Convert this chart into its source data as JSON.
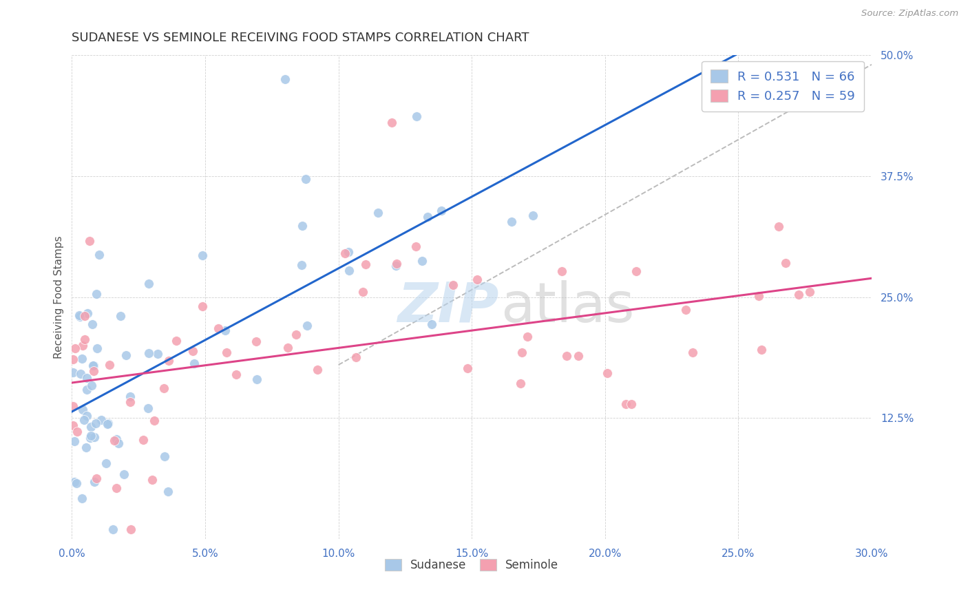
{
  "title": "SUDANESE VS SEMINOLE RECEIVING FOOD STAMPS CORRELATION CHART",
  "source": "Source: ZipAtlas.com",
  "xlim": [
    0.0,
    0.3
  ],
  "ylim": [
    0.0,
    0.5
  ],
  "ylabel": "Receiving Food Stamps",
  "blue_color": "#a8c8e8",
  "pink_color": "#f4a0b0",
  "blue_line_color": "#2266cc",
  "pink_line_color": "#dd4488",
  "dashed_line_color": "#bbbbbb",
  "title_color": "#333333",
  "axis_tick_color": "#4472c4",
  "ylabel_color": "#555555",
  "watermark_zip_color": "#b8d4ee",
  "watermark_atlas_color": "#bbbbbb",
  "grid_color": "#cccccc",
  "legend_label1": "Sudanese",
  "legend_label2": "Seminole",
  "r1_text": "R = 0.531",
  "n1_text": "N = 66",
  "r2_text": "R = 0.257",
  "n2_text": "N = 59"
}
